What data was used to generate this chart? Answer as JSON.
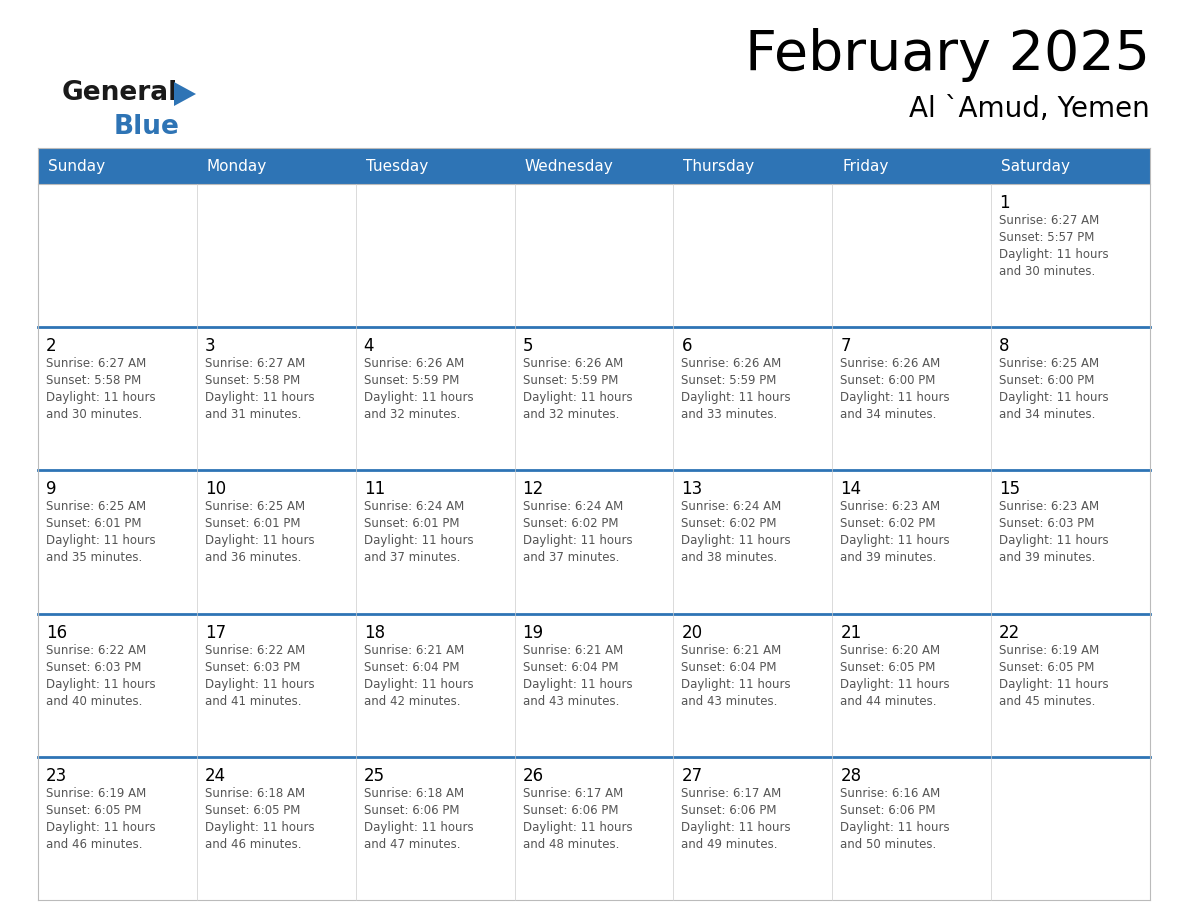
{
  "title": "February 2025",
  "subtitle": "Al `Amud, Yemen",
  "header_color": "#2E74B5",
  "header_text_color": "#FFFFFF",
  "day_names": [
    "Sunday",
    "Monday",
    "Tuesday",
    "Wednesday",
    "Thursday",
    "Friday",
    "Saturday"
  ],
  "weeks": [
    [
      {
        "day": null,
        "info": null
      },
      {
        "day": null,
        "info": null
      },
      {
        "day": null,
        "info": null
      },
      {
        "day": null,
        "info": null
      },
      {
        "day": null,
        "info": null
      },
      {
        "day": null,
        "info": null
      },
      {
        "day": 1,
        "info": "Sunrise: 6:27 AM\nSunset: 5:57 PM\nDaylight: 11 hours\nand 30 minutes."
      }
    ],
    [
      {
        "day": 2,
        "info": "Sunrise: 6:27 AM\nSunset: 5:58 PM\nDaylight: 11 hours\nand 30 minutes."
      },
      {
        "day": 3,
        "info": "Sunrise: 6:27 AM\nSunset: 5:58 PM\nDaylight: 11 hours\nand 31 minutes."
      },
      {
        "day": 4,
        "info": "Sunrise: 6:26 AM\nSunset: 5:59 PM\nDaylight: 11 hours\nand 32 minutes."
      },
      {
        "day": 5,
        "info": "Sunrise: 6:26 AM\nSunset: 5:59 PM\nDaylight: 11 hours\nand 32 minutes."
      },
      {
        "day": 6,
        "info": "Sunrise: 6:26 AM\nSunset: 5:59 PM\nDaylight: 11 hours\nand 33 minutes."
      },
      {
        "day": 7,
        "info": "Sunrise: 6:26 AM\nSunset: 6:00 PM\nDaylight: 11 hours\nand 34 minutes."
      },
      {
        "day": 8,
        "info": "Sunrise: 6:25 AM\nSunset: 6:00 PM\nDaylight: 11 hours\nand 34 minutes."
      }
    ],
    [
      {
        "day": 9,
        "info": "Sunrise: 6:25 AM\nSunset: 6:01 PM\nDaylight: 11 hours\nand 35 minutes."
      },
      {
        "day": 10,
        "info": "Sunrise: 6:25 AM\nSunset: 6:01 PM\nDaylight: 11 hours\nand 36 minutes."
      },
      {
        "day": 11,
        "info": "Sunrise: 6:24 AM\nSunset: 6:01 PM\nDaylight: 11 hours\nand 37 minutes."
      },
      {
        "day": 12,
        "info": "Sunrise: 6:24 AM\nSunset: 6:02 PM\nDaylight: 11 hours\nand 37 minutes."
      },
      {
        "day": 13,
        "info": "Sunrise: 6:24 AM\nSunset: 6:02 PM\nDaylight: 11 hours\nand 38 minutes."
      },
      {
        "day": 14,
        "info": "Sunrise: 6:23 AM\nSunset: 6:02 PM\nDaylight: 11 hours\nand 39 minutes."
      },
      {
        "day": 15,
        "info": "Sunrise: 6:23 AM\nSunset: 6:03 PM\nDaylight: 11 hours\nand 39 minutes."
      }
    ],
    [
      {
        "day": 16,
        "info": "Sunrise: 6:22 AM\nSunset: 6:03 PM\nDaylight: 11 hours\nand 40 minutes."
      },
      {
        "day": 17,
        "info": "Sunrise: 6:22 AM\nSunset: 6:03 PM\nDaylight: 11 hours\nand 41 minutes."
      },
      {
        "day": 18,
        "info": "Sunrise: 6:21 AM\nSunset: 6:04 PM\nDaylight: 11 hours\nand 42 minutes."
      },
      {
        "day": 19,
        "info": "Sunrise: 6:21 AM\nSunset: 6:04 PM\nDaylight: 11 hours\nand 43 minutes."
      },
      {
        "day": 20,
        "info": "Sunrise: 6:21 AM\nSunset: 6:04 PM\nDaylight: 11 hours\nand 43 minutes."
      },
      {
        "day": 21,
        "info": "Sunrise: 6:20 AM\nSunset: 6:05 PM\nDaylight: 11 hours\nand 44 minutes."
      },
      {
        "day": 22,
        "info": "Sunrise: 6:19 AM\nSunset: 6:05 PM\nDaylight: 11 hours\nand 45 minutes."
      }
    ],
    [
      {
        "day": 23,
        "info": "Sunrise: 6:19 AM\nSunset: 6:05 PM\nDaylight: 11 hours\nand 46 minutes."
      },
      {
        "day": 24,
        "info": "Sunrise: 6:18 AM\nSunset: 6:05 PM\nDaylight: 11 hours\nand 46 minutes."
      },
      {
        "day": 25,
        "info": "Sunrise: 6:18 AM\nSunset: 6:06 PM\nDaylight: 11 hours\nand 47 minutes."
      },
      {
        "day": 26,
        "info": "Sunrise: 6:17 AM\nSunset: 6:06 PM\nDaylight: 11 hours\nand 48 minutes."
      },
      {
        "day": 27,
        "info": "Sunrise: 6:17 AM\nSunset: 6:06 PM\nDaylight: 11 hours\nand 49 minutes."
      },
      {
        "day": 28,
        "info": "Sunrise: 6:16 AM\nSunset: 6:06 PM\nDaylight: 11 hours\nand 50 minutes."
      },
      {
        "day": null,
        "info": null
      }
    ]
  ],
  "bg_color": "#FFFFFF",
  "text_color": "#000000",
  "info_text_color": "#555555",
  "divider_color": "#2E74B5",
  "logo_general_color": "#1a1a1a",
  "logo_blue_color": "#2E74B5",
  "logo_triangle_color": "#2E74B5"
}
